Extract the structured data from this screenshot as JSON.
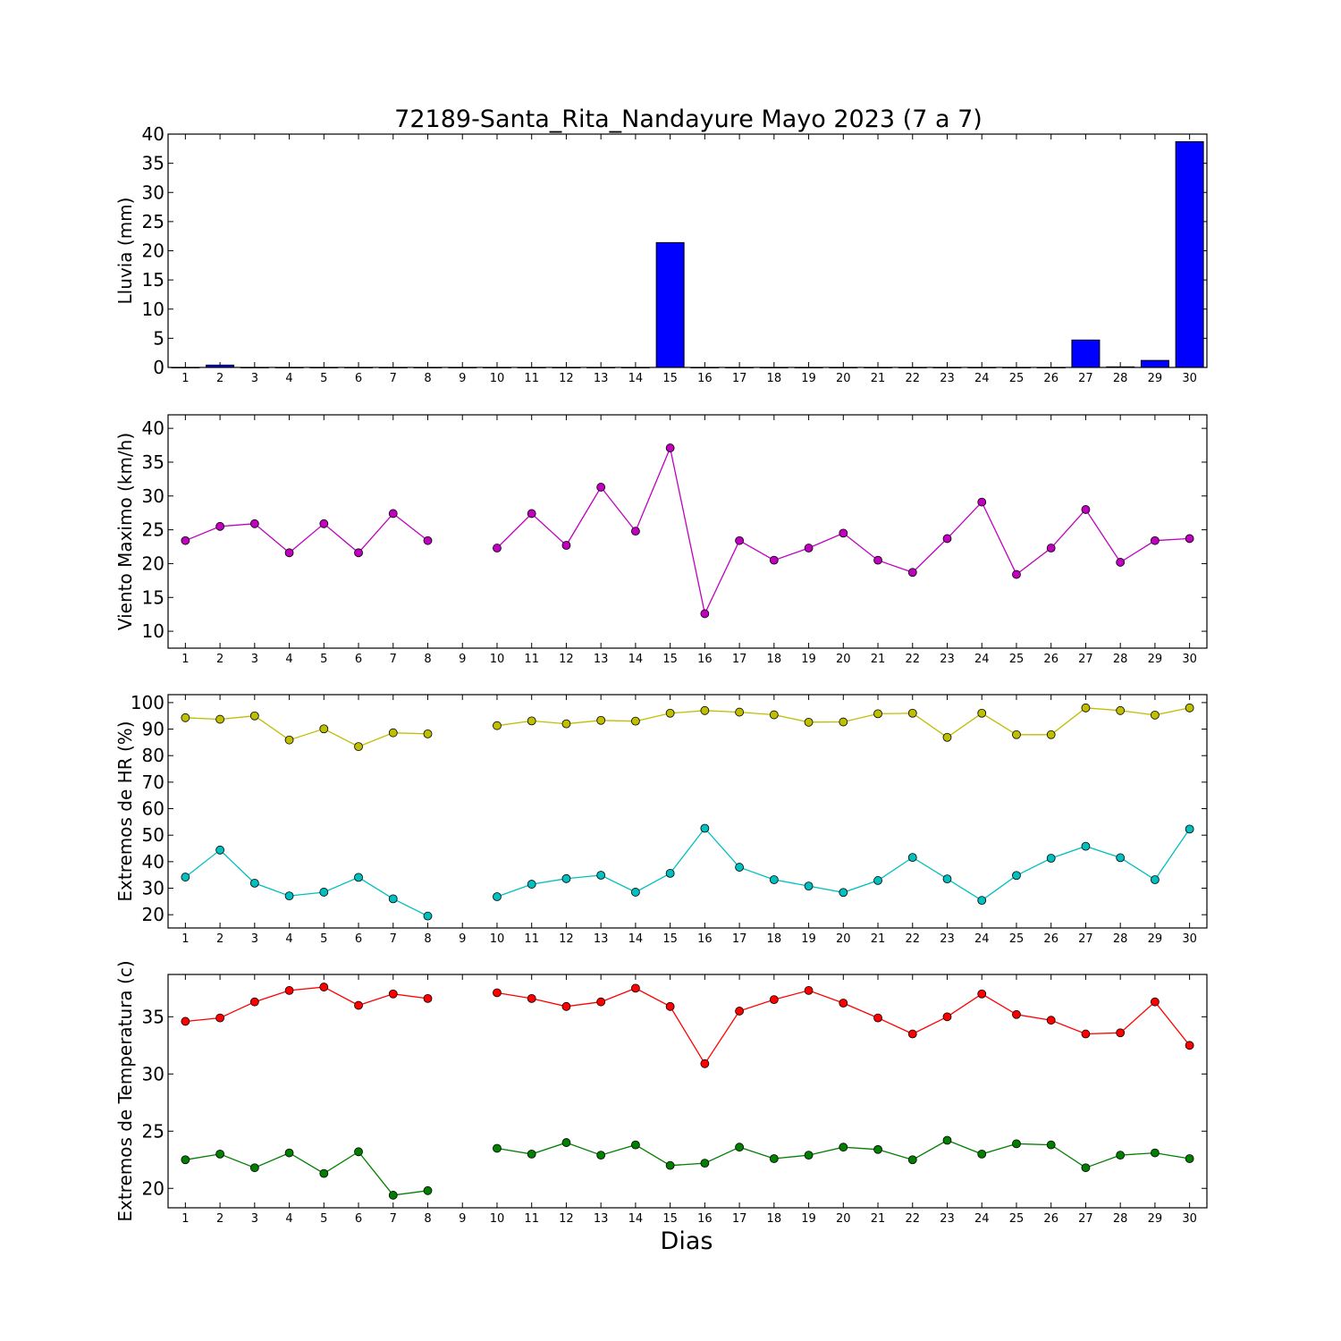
{
  "title": "72189-Santa_Rita_Nandayure Mayo 2023  (7 a 7)",
  "xlabel": "Dias",
  "chart_data": [
    {
      "type": "bar",
      "ylabel": "Lluvia (mm)",
      "ylim": [
        0,
        40
      ],
      "yticks": [
        0,
        5,
        10,
        15,
        20,
        25,
        30,
        35,
        40
      ],
      "x": [
        1,
        2,
        3,
        4,
        5,
        6,
        7,
        8,
        9,
        10,
        11,
        12,
        13,
        14,
        15,
        16,
        17,
        18,
        19,
        20,
        21,
        22,
        23,
        24,
        25,
        26,
        27,
        28,
        29,
        30
      ],
      "series": [
        {
          "color": "#0000ff",
          "values": [
            0,
            0.4,
            0,
            0,
            0,
            0,
            0,
            0,
            0,
            0,
            0,
            0,
            0,
            0,
            21.4,
            0,
            0,
            0,
            0,
            0,
            0,
            0,
            0,
            0,
            0,
            0,
            4.7,
            0.1,
            1.2,
            38.7
          ]
        }
      ]
    },
    {
      "type": "line",
      "ylabel": "Viento Maximo (km/h)",
      "ylim": [
        7.5,
        42
      ],
      "yticks": [
        10,
        15,
        20,
        25,
        30,
        35,
        40
      ],
      "x": [
        1,
        2,
        3,
        4,
        5,
        6,
        7,
        8,
        9,
        10,
        11,
        12,
        13,
        14,
        15,
        16,
        17,
        18,
        19,
        20,
        21,
        22,
        23,
        24,
        25,
        26,
        27,
        28,
        29,
        30
      ],
      "series": [
        {
          "color": "#bf00bf",
          "values": [
            23.4,
            25.5,
            25.9,
            21.6,
            25.9,
            21.6,
            27.4,
            23.4,
            null,
            22.3,
            27.4,
            22.7,
            31.3,
            24.8,
            37.1,
            12.6,
            23.4,
            20.5,
            22.3,
            24.5,
            20.5,
            18.7,
            23.7,
            29.1,
            18.4,
            22.3,
            28.0,
            20.2,
            23.4,
            23.7
          ]
        }
      ]
    },
    {
      "type": "line",
      "ylabel": "Extremos de HR (%)",
      "ylim": [
        15,
        103
      ],
      "yticks": [
        20,
        30,
        40,
        50,
        60,
        70,
        80,
        90,
        100
      ],
      "x": [
        1,
        2,
        3,
        4,
        5,
        6,
        7,
        8,
        9,
        10,
        11,
        12,
        13,
        14,
        15,
        16,
        17,
        18,
        19,
        20,
        21,
        22,
        23,
        24,
        25,
        26,
        27,
        28,
        29,
        30
      ],
      "series": [
        {
          "color": "#bfbf00",
          "values": [
            94.3,
            93.7,
            95.0,
            85.9,
            90.1,
            83.4,
            88.6,
            88.2,
            null,
            91.3,
            93.1,
            92.0,
            93.3,
            93.0,
            96.0,
            97.0,
            96.4,
            95.4,
            92.6,
            92.7,
            95.8,
            96.0,
            86.9,
            96.0,
            87.9,
            87.9,
            98.0,
            97.0,
            95.3,
            98.0
          ]
        },
        {
          "color": "#00bfbf",
          "values": [
            34.2,
            44.4,
            31.9,
            27.1,
            28.5,
            34.1,
            26.0,
            19.5,
            null,
            26.8,
            31.5,
            33.6,
            34.9,
            28.5,
            35.6,
            52.6,
            37.9,
            33.2,
            30.8,
            28.4,
            32.9,
            41.6,
            33.5,
            25.4,
            34.8,
            41.3,
            45.8,
            41.5,
            33.2,
            52.3
          ]
        }
      ]
    },
    {
      "type": "line",
      "ylabel": "Extremos de Temperatura (c)",
      "ylim": [
        18.3,
        38.7
      ],
      "yticks": [
        20,
        25,
        30,
        35
      ],
      "x": [
        1,
        2,
        3,
        4,
        5,
        6,
        7,
        8,
        9,
        10,
        11,
        12,
        13,
        14,
        15,
        16,
        17,
        18,
        19,
        20,
        21,
        22,
        23,
        24,
        25,
        26,
        27,
        28,
        29,
        30
      ],
      "series": [
        {
          "color": "#ff0000",
          "values": [
            34.6,
            34.9,
            36.3,
            37.3,
            37.6,
            36.0,
            37.0,
            36.6,
            null,
            37.1,
            36.6,
            35.9,
            36.3,
            37.5,
            35.9,
            30.9,
            35.5,
            36.5,
            37.3,
            36.2,
            34.9,
            33.5,
            35.0,
            37.0,
            35.2,
            34.7,
            33.5,
            33.6,
            36.3,
            32.5
          ]
        },
        {
          "color": "#007f00",
          "values": [
            22.5,
            23.0,
            21.8,
            23.1,
            21.3,
            23.2,
            19.4,
            19.8,
            null,
            23.5,
            23.0,
            24.0,
            22.9,
            23.8,
            22.0,
            22.2,
            23.6,
            22.6,
            22.9,
            23.6,
            23.4,
            22.5,
            24.2,
            23.0,
            23.9,
            23.8,
            21.8,
            22.9,
            23.1,
            22.6
          ]
        }
      ]
    }
  ]
}
